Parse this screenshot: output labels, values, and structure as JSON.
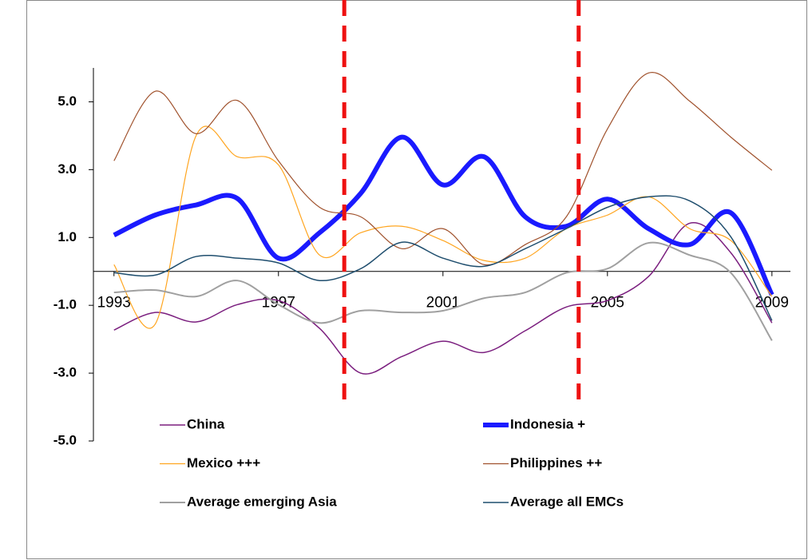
{
  "chart_data": {
    "type": "line",
    "x": [
      1993,
      1994,
      1995,
      1996,
      1997,
      1998,
      1999,
      2000,
      2001,
      2002,
      2003,
      2004,
      2005,
      2006,
      2007,
      2008,
      2009
    ],
    "xlim": [
      1992.5,
      2009.45
    ],
    "xticks": [
      1993,
      1997,
      2001,
      2005,
      2009
    ],
    "ylim": [
      -5,
      6
    ],
    "yticks": [
      {
        "value": 5,
        "label": "5.0"
      },
      {
        "value": 3,
        "label": "3.0"
      },
      {
        "value": 1,
        "label": "1.0"
      },
      {
        "value": -1,
        "label": "-1.0"
      },
      {
        "value": -3,
        "label": "-3.0"
      },
      {
        "value": -5,
        "label": "-5.0"
      }
    ],
    "reference_lines": {
      "color": "#ee1111",
      "x": [
        1998.6,
        2004.3
      ]
    },
    "series": [
      {
        "name": "China",
        "color": "#7b1f7f",
        "width": 1.5,
        "values": [
          -1.73,
          -1.21,
          -1.49,
          -0.98,
          -0.86,
          -1.68,
          -3.0,
          -2.51,
          -2.06,
          -2.39,
          -1.75,
          -1.05,
          -0.86,
          -0.15,
          1.42,
          0.55,
          -1.52
        ]
      },
      {
        "name": "Indonesia +",
        "color": "#1a1aff",
        "width": 6,
        "values": [
          1.07,
          1.66,
          1.96,
          2.15,
          0.39,
          1.14,
          2.3,
          3.96,
          2.55,
          3.38,
          1.61,
          1.33,
          2.13,
          1.26,
          0.79,
          1.73,
          -0.69
        ]
      },
      {
        "name": "Mexico +++",
        "color": "#ffa51f",
        "width": 1.2,
        "values": [
          0.2,
          -1.56,
          4.01,
          3.38,
          3.14,
          0.48,
          1.14,
          1.33,
          0.91,
          0.32,
          0.39,
          1.26,
          1.66,
          2.2,
          1.26,
          0.91,
          -0.74
        ]
      },
      {
        "name": "Philippines ++",
        "color": "#a0522d",
        "width": 1.2,
        "values": [
          3.26,
          5.31,
          4.06,
          5.04,
          3.26,
          1.89,
          1.61,
          0.67,
          1.26,
          0.2,
          0.79,
          1.61,
          4.2,
          5.85,
          5.02,
          3.96,
          2.98
        ]
      },
      {
        "name": "Average emerging Asia",
        "color": "#a0a0a0",
        "width": 2,
        "values": [
          -0.62,
          -0.55,
          -0.74,
          -0.27,
          -0.98,
          -1.52,
          -1.16,
          -1.21,
          -1.16,
          -0.79,
          -0.62,
          -0.04,
          0.08,
          0.84,
          0.48,
          -0.04,
          -2.04
        ]
      },
      {
        "name": "Average all EMCs",
        "color": "#1f4e6e",
        "width": 1.5,
        "values": [
          -0.04,
          -0.11,
          0.44,
          0.39,
          0.25,
          -0.27,
          0.08,
          0.86,
          0.39,
          0.15,
          0.67,
          1.26,
          1.89,
          2.2,
          2.08,
          1.02,
          -1.45
        ]
      }
    ]
  }
}
